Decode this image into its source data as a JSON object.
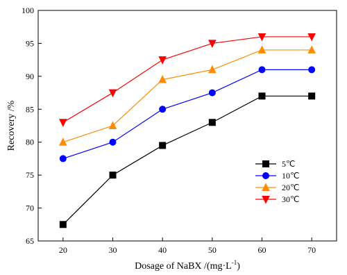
{
  "chart_data": {
    "type": "line",
    "title": "",
    "xlabel": "Dosage of NaBX /(mg·L",
    "xlabel_sup": "-1",
    "xlabel_close": ")",
    "ylabel": "Recovery /%",
    "x": [
      20,
      30,
      40,
      50,
      60,
      70
    ],
    "xlim": [
      15,
      75
    ],
    "ylim": [
      65,
      100
    ],
    "xticks": [
      20,
      30,
      40,
      50,
      60,
      70
    ],
    "yticks": [
      65,
      70,
      75,
      80,
      85,
      90,
      95,
      100
    ],
    "grid": false,
    "legend_position": "right-center",
    "series": [
      {
        "name": "5℃",
        "color": "#000000",
        "marker": "square",
        "values": [
          67.5,
          75.0,
          79.5,
          83.0,
          87.0,
          87.0
        ]
      },
      {
        "name": "10℃",
        "color": "#0000ff",
        "marker": "circle",
        "values": [
          77.5,
          80.0,
          85.0,
          87.5,
          91.0,
          91.0
        ]
      },
      {
        "name": "20℃",
        "color": "#ff8c00",
        "marker": "triangle-up",
        "values": [
          80.0,
          82.5,
          89.5,
          91.0,
          94.0,
          94.0
        ]
      },
      {
        "name": "30℃",
        "color": "#ff0000",
        "marker": "triangle-down",
        "values": [
          83.0,
          87.5,
          92.5,
          95.0,
          96.0,
          96.0
        ]
      }
    ]
  }
}
